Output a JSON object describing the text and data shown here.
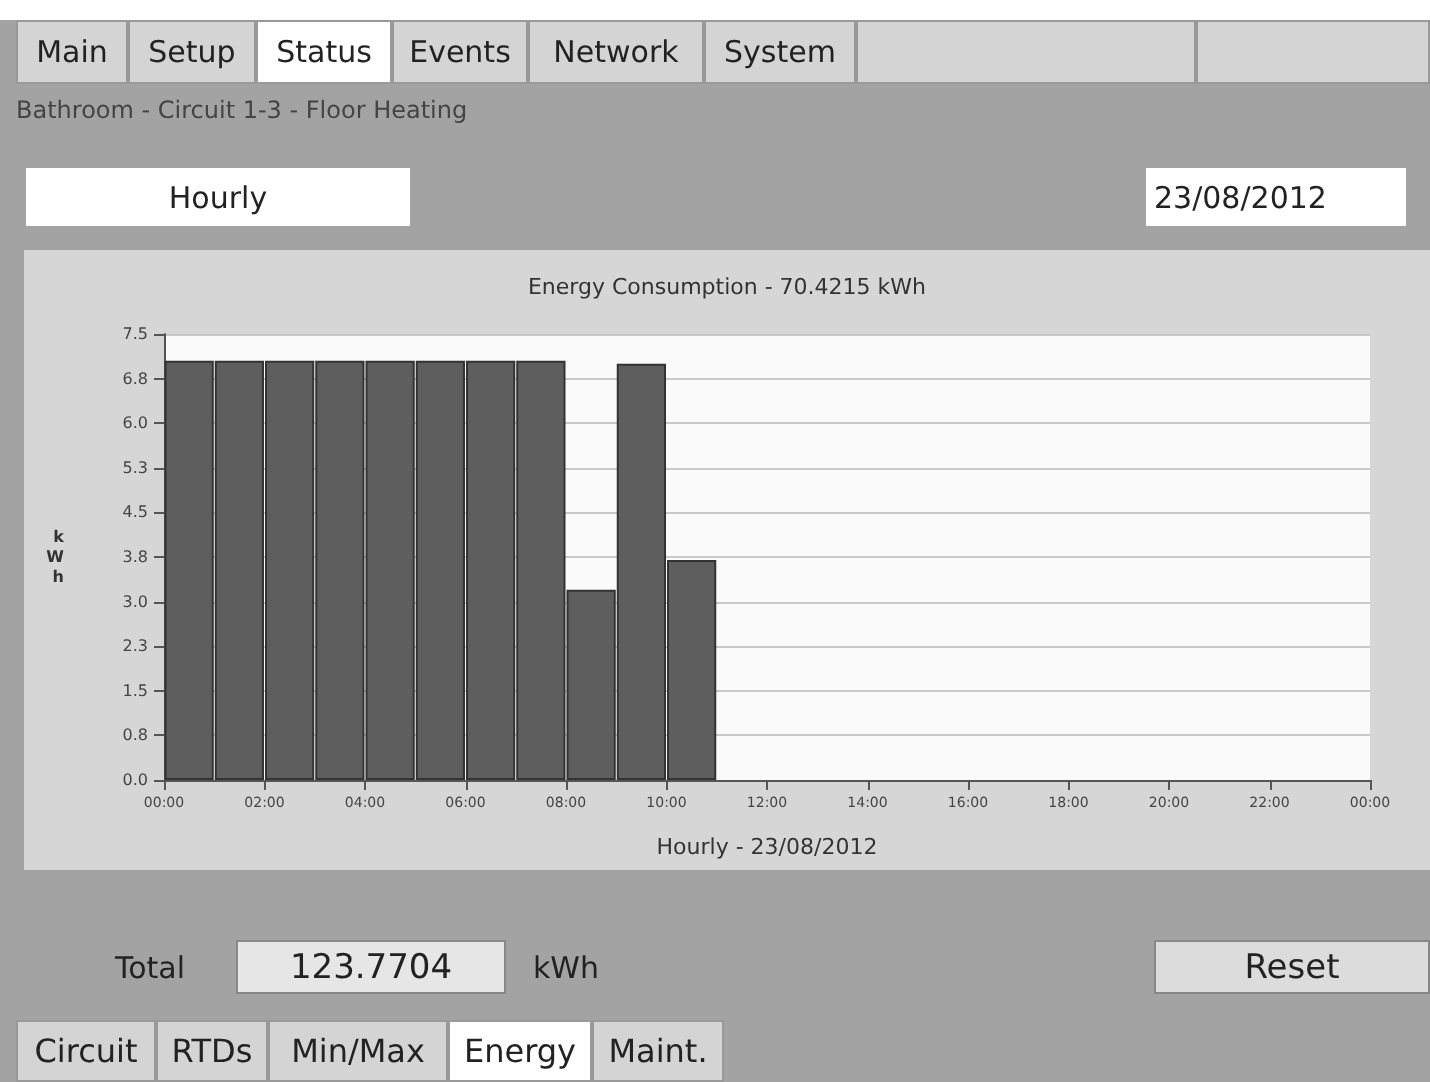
{
  "chart_data": {
    "type": "bar",
    "title": "Energy Consumption - 70.4215 kWh",
    "xlabel": "Hourly - 23/08/2012",
    "ylabel": "kWh",
    "x": [
      0.5,
      1.5,
      2.5,
      3.5,
      4.5,
      5.5,
      6.5,
      7.5,
      8.5,
      9.5,
      10.5
    ],
    "values": [
      7.05,
      7.05,
      7.05,
      7.05,
      7.05,
      7.05,
      7.05,
      7.05,
      3.2,
      7.0,
      3.7
    ],
    "color": "#5e5e5e",
    "xlim": [
      0,
      24
    ],
    "xticks": [
      {
        "value": 0,
        "label": "00:00"
      },
      {
        "value": 2,
        "label": "02:00"
      },
      {
        "value": 4,
        "label": "04:00"
      },
      {
        "value": 6,
        "label": "06:00"
      },
      {
        "value": 8,
        "label": "08:00"
      },
      {
        "value": 10,
        "label": "10:00"
      },
      {
        "value": 12,
        "label": "12:00"
      },
      {
        "value": 14,
        "label": "14:00"
      },
      {
        "value": 16,
        "label": "16:00"
      },
      {
        "value": 18,
        "label": "18:00"
      },
      {
        "value": 20,
        "label": "20:00"
      },
      {
        "value": 22,
        "label": "22:00"
      },
      {
        "value": 24,
        "label": "00:00"
      }
    ],
    "ylim": [
      0,
      7.5
    ],
    "yticks": [
      {
        "value": 0,
        "label": "0.0"
      },
      {
        "value": 0.75,
        "label": "0.8"
      },
      {
        "value": 1.5,
        "label": "1.5"
      },
      {
        "value": 2.25,
        "label": "2.3"
      },
      {
        "value": 3,
        "label": "3.0"
      },
      {
        "value": 3.75,
        "label": "3.8"
      },
      {
        "value": 4.5,
        "label": "4.5"
      },
      {
        "value": 5.25,
        "label": "5.3"
      },
      {
        "value": 6,
        "label": "6.0"
      },
      {
        "value": 6.75,
        "label": "6.8"
      },
      {
        "value": 7.5,
        "label": "7.5"
      }
    ],
    "grid": "y",
    "annotations": [
      "Main",
      "Setup",
      "Status",
      "Events",
      "Network",
      "System",
      "Bathroom - Circuit 1-3 - Floor Heating",
      "Hourly",
      "23/08/2012",
      "Total",
      "123.7704",
      "kWh",
      "Reset",
      "Circuit",
      "RTDs",
      "Min/Max",
      "Energy",
      "Maint."
    ]
  }
}
